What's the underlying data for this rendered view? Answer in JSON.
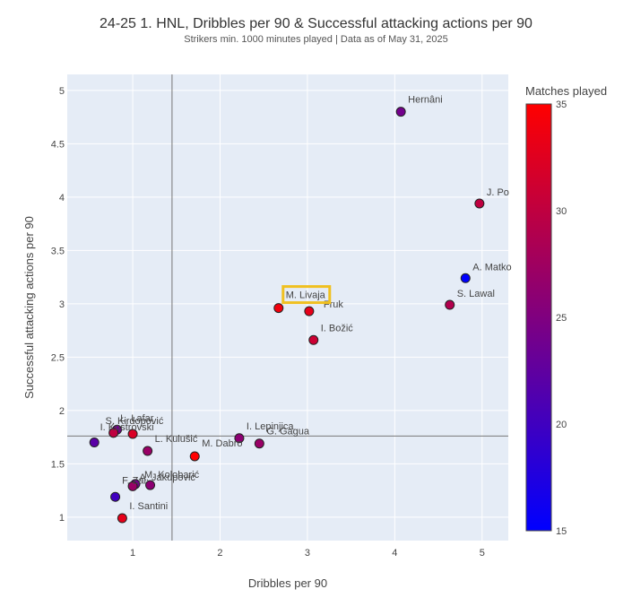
{
  "chart_data": {
    "type": "scatter",
    "title": "24-25 1. HNL, Dribbles per 90 & Successful attacking actions per 90",
    "subtitle": "Strikers min. 1000 minutes played | Data as of May 31, 2025",
    "xlabel": "Dribbles per 90",
    "ylabel": "Successful attacking actions per 90",
    "xlim": [
      0.25,
      5.3
    ],
    "ylim": [
      0.78,
      5.15
    ],
    "x_ticks": [
      1,
      2,
      3,
      4,
      5
    ],
    "y_ticks": [
      1,
      1.5,
      2,
      2.5,
      3,
      3.5,
      4,
      4.5,
      5
    ],
    "x_tick_labels": [
      "1",
      "2",
      "3",
      "4",
      "5"
    ],
    "y_tick_labels": [
      "1",
      "1.5",
      "2",
      "2.5",
      "3",
      "3.5",
      "4",
      "4.5",
      "5"
    ],
    "reference_lines": {
      "x": 1.45,
      "y": 1.76
    },
    "colorbar": {
      "title": "Matches played",
      "min": 15,
      "max": 35,
      "ticks": [
        15,
        20,
        25,
        30,
        35
      ],
      "tick_labels": [
        "15",
        "20",
        "25",
        "30",
        "35"
      ],
      "color_low": "#0000ff",
      "color_high": "#ff0000"
    },
    "highlight": {
      "player": "M. Livaja",
      "color": "#f0c020"
    },
    "points": [
      {
        "label": "Hernâni",
        "x": 4.07,
        "y": 4.8,
        "matches": 24
      },
      {
        "label": "J. Po",
        "x": 4.97,
        "y": 3.94,
        "matches": 30
      },
      {
        "label": "A. Matko",
        "x": 4.81,
        "y": 3.24,
        "matches": 15
      },
      {
        "label": "S. Lawal",
        "x": 4.63,
        "y": 2.99,
        "matches": 29
      },
      {
        "label": "M. Livaja",
        "x": 2.67,
        "y": 2.96,
        "matches": 34
      },
      {
        "label": "Fruk",
        "x": 3.02,
        "y": 2.93,
        "matches": 33
      },
      {
        "label": "I. Božić",
        "x": 3.07,
        "y": 2.66,
        "matches": 31
      },
      {
        "label": "I. Lepinjica",
        "x": 2.22,
        "y": 1.74,
        "matches": 26
      },
      {
        "label": "G. Gagua",
        "x": 2.45,
        "y": 1.69,
        "matches": 27
      },
      {
        "label": "M. Dabro",
        "x": 1.71,
        "y": 1.57,
        "matches": 35
      },
      {
        "label": "L. Kulušić",
        "x": 1.17,
        "y": 1.62,
        "matches": 27
      },
      {
        "label": "S. Kirdopović",
        "x": 0.82,
        "y": 1.82,
        "matches": 24
      },
      {
        "label": "L. Lafar",
        "x": 1.0,
        "y": 1.78,
        "matches": 32
      },
      {
        "label": "I. Kostrovski",
        "x": 0.78,
        "y": 1.79,
        "matches": 30
      },
      {
        "label": "",
        "x": 0.56,
        "y": 1.7,
        "matches": 22
      },
      {
        "label": "M. Kolobarić",
        "x": 1.03,
        "y": 1.31,
        "matches": 24
      },
      {
        "label": "A. Jakupović",
        "x": 1.2,
        "y": 1.3,
        "matches": 26
      },
      {
        "label": "F. Zai",
        "x": 1.0,
        "y": 1.29,
        "matches": 27
      },
      {
        "label": "",
        "x": 0.8,
        "y": 1.19,
        "matches": 20
      },
      {
        "label": "I. Santini",
        "x": 0.88,
        "y": 0.99,
        "matches": 33
      }
    ]
  }
}
